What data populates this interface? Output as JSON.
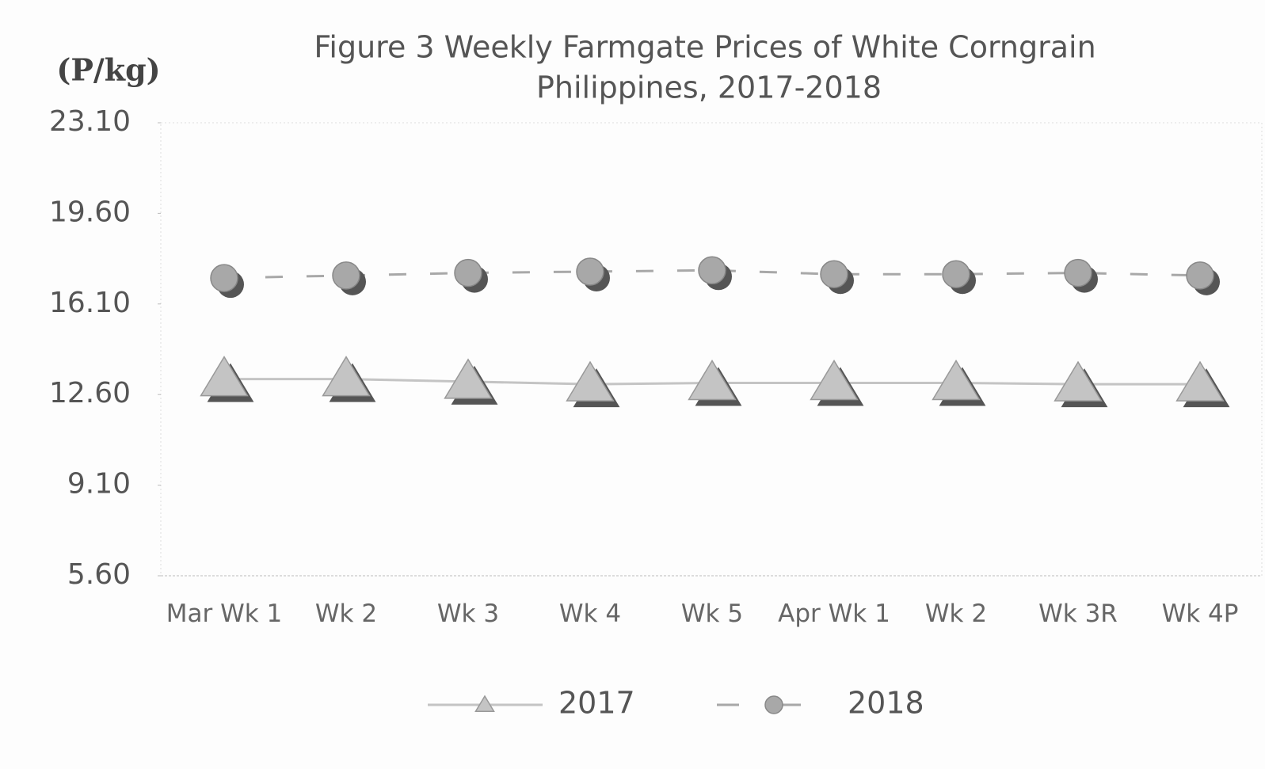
{
  "chart_data": {
    "type": "line",
    "title": "Figure 3  Weekly Farmgate Prices of White Corngrain",
    "subtitle": "Philippines, 2017-2018",
    "y_label": "(P/kg)",
    "categories": [
      "Mar Wk 1",
      "Wk 2",
      "Wk 3",
      "Wk 4",
      "Wk 5",
      "Apr Wk 1",
      "Wk 2",
      "Wk 3R",
      "Wk 4P"
    ],
    "series": [
      {
        "name": "2017",
        "color": "#c4c4c4",
        "marker": "triangle",
        "line_style": "solid",
        "values": [
          13.2,
          13.2,
          13.1,
          13.0,
          13.05,
          13.05,
          13.05,
          13.0,
          13.0
        ]
      },
      {
        "name": "2018",
        "color": "#a8a8a8",
        "marker": "circle",
        "line_style": "dashed",
        "values": [
          17.1,
          17.2,
          17.3,
          17.35,
          17.4,
          17.25,
          17.25,
          17.3,
          17.2
        ]
      }
    ],
    "ylim": [
      5.6,
      23.1
    ],
    "yticks": [
      {
        "value": 23.1,
        "label": "23.10"
      },
      {
        "value": 19.6,
        "label": "19.60"
      },
      {
        "value": 16.1,
        "label": "16.10"
      },
      {
        "value": 12.6,
        "label": "12.60"
      },
      {
        "value": 9.1,
        "label": "9.10"
      },
      {
        "value": 5.6,
        "label": "5.60"
      }
    ],
    "grid": false,
    "legend": "bottom"
  }
}
